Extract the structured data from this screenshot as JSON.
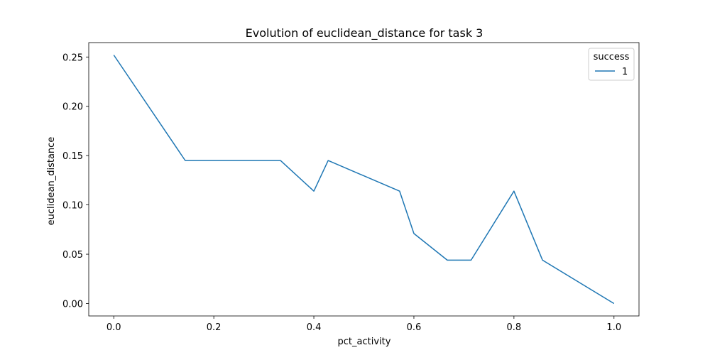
{
  "chart_data": {
    "type": "line",
    "title": "Evolution of euclidean_distance for task 3",
    "xlabel": "pct_activity",
    "ylabel": "euclidean_distance",
    "xlim": [
      -0.05,
      1.05
    ],
    "ylim": [
      -0.0126,
      0.2646
    ],
    "xticks": [
      0.0,
      0.2,
      0.4,
      0.6,
      0.8,
      1.0
    ],
    "xtick_labels": [
      "0.0",
      "0.2",
      "0.4",
      "0.6",
      "0.8",
      "1.0"
    ],
    "yticks": [
      0.0,
      0.05,
      0.1,
      0.15,
      0.2,
      0.25
    ],
    "ytick_labels": [
      "0.00",
      "0.05",
      "0.10",
      "0.15",
      "0.20",
      "0.25"
    ],
    "grid": false,
    "legend": {
      "title": "success",
      "placement": "top-right"
    },
    "series": [
      {
        "name": "1",
        "color": "#1f77b4",
        "x": [
          0.0,
          0.1429,
          0.3333,
          0.4,
          0.4286,
          0.5714,
          0.6,
          0.6667,
          0.7143,
          0.8,
          0.8571,
          1.0
        ],
        "y": [
          0.252,
          0.145,
          0.145,
          0.114,
          0.145,
          0.114,
          0.071,
          0.044,
          0.044,
          0.114,
          0.044,
          0.0
        ]
      }
    ]
  }
}
